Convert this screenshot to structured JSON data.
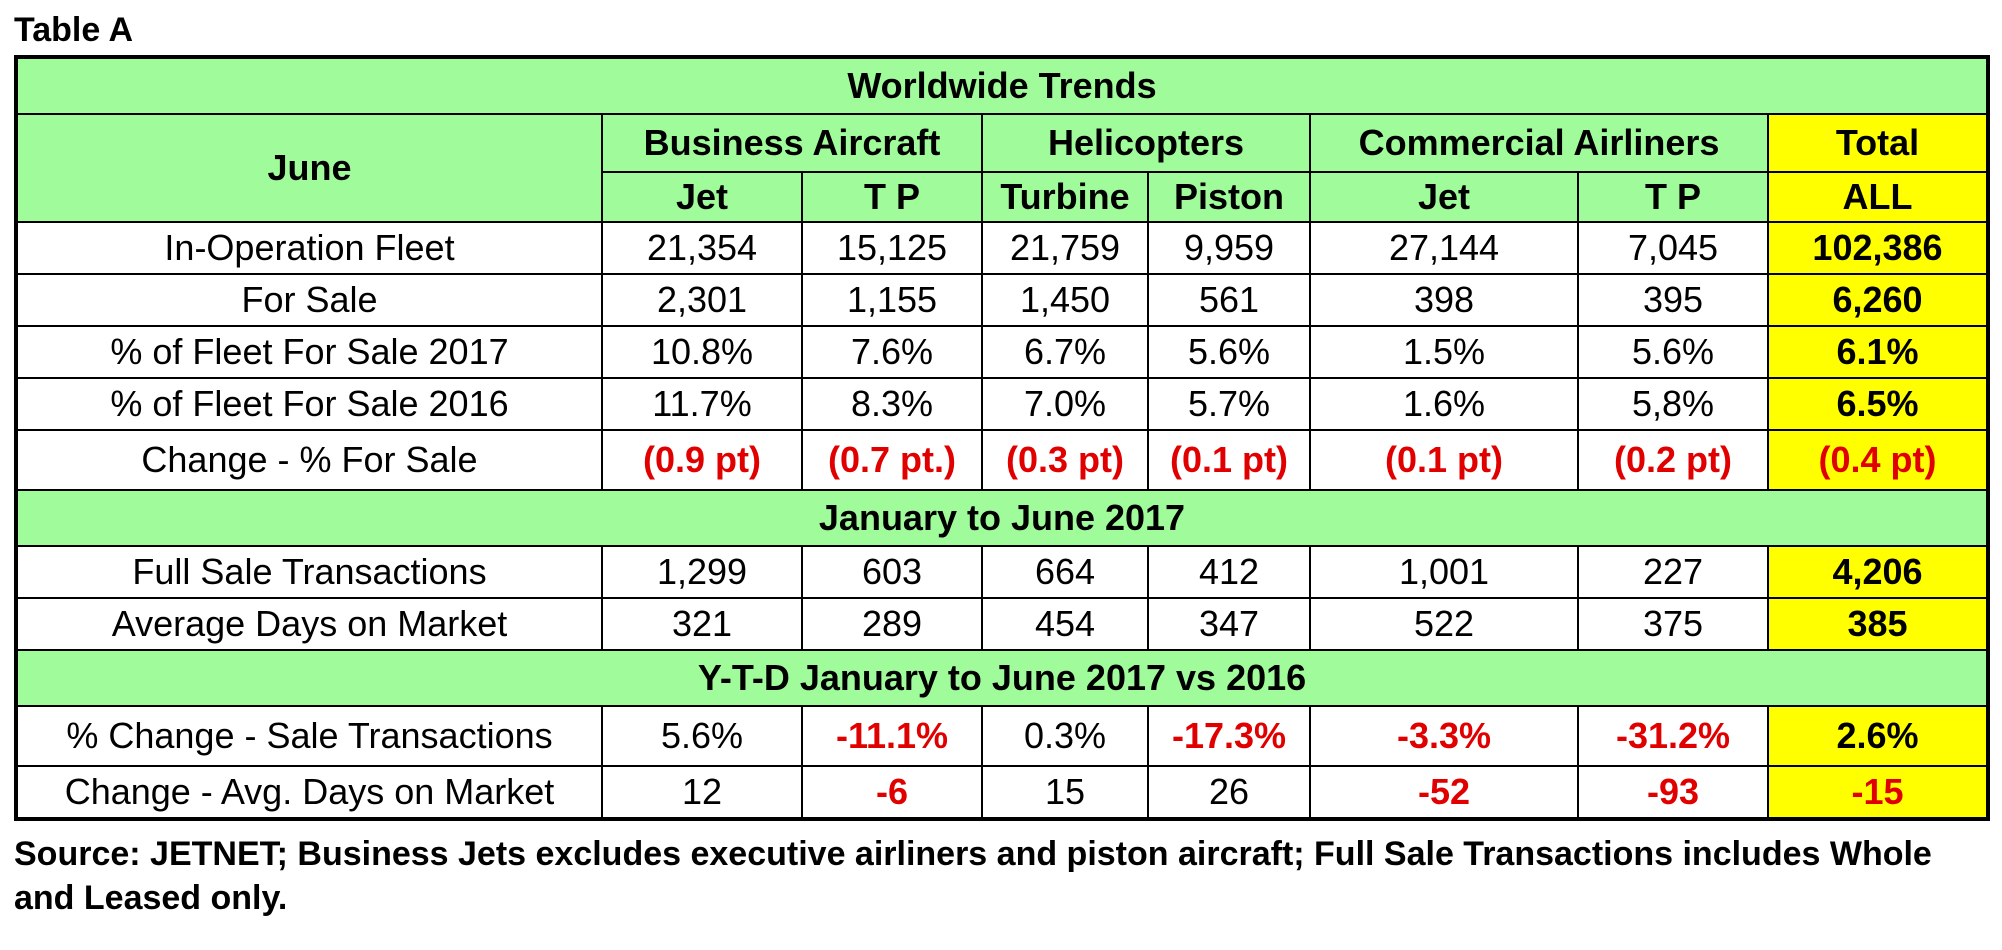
{
  "caption": "Table A",
  "title": "Worldwide Trends",
  "row_header": "June",
  "groups": {
    "business": "Business Aircraft",
    "helicopters": "Helicopters",
    "commercial": "Commercial Airliners",
    "total": "Total"
  },
  "columns": [
    "Jet",
    "T P",
    "Turbine",
    "Piston",
    "Jet",
    "T P",
    "ALL"
  ],
  "section1_rows": [
    {
      "label": "In-Operation Fleet",
      "values": [
        "21,354",
        "15,125",
        "21,759",
        "9,959",
        "27,144",
        "7,045",
        "102,386"
      ]
    },
    {
      "label": "For Sale",
      "values": [
        "2,301",
        "1,155",
        "1,450",
        "561",
        "398",
        "395",
        "6,260"
      ]
    },
    {
      "label": "% of Fleet For Sale 2017",
      "values": [
        "10.8%",
        "7.6%",
        "6.7%",
        "5.6%",
        "1.5%",
        "5.6%",
        "6.1%"
      ]
    },
    {
      "label": "% of Fleet For Sale 2016",
      "values": [
        "11.7%",
        "8.3%",
        "7.0%",
        "5.7%",
        "1.6%",
        "5,8%",
        "6.5%"
      ]
    },
    {
      "label": "Change - % For Sale",
      "values": [
        "(0.9 pt)",
        "(0.7 pt.)",
        "(0.3 pt)",
        "(0.1 pt)",
        "(0.1 pt)",
        "(0.2 pt)",
        "(0.4 pt)"
      ]
    }
  ],
  "section2_title": "January to June 2017",
  "section2_rows": [
    {
      "label": "Full Sale Transactions",
      "values": [
        "1,299",
        "603",
        "664",
        "412",
        "1,001",
        "227",
        "4,206"
      ]
    },
    {
      "label": "Average Days on Market",
      "values": [
        "321",
        "289",
        "454",
        "347",
        "522",
        "375",
        "385"
      ]
    }
  ],
  "section3_title": "Y-T-D January to June 2017 vs 2016",
  "section3_rows": [
    {
      "label": "% Change  - Sale Transactions",
      "values": [
        "5.6%",
        "-11.1%",
        "0.3%",
        "-17.3%",
        "-3.3%",
        "-31.2%",
        "2.6%"
      ]
    },
    {
      "label": "Change -  Avg. Days on Market",
      "values": [
        "12",
        "-6",
        "15",
        "26",
        "-52",
        "-93",
        "-15"
      ]
    }
  ],
  "footer": "Source: JETNET; Business Jets excludes executive airliners and piston aircraft; Full Sale Transactions includes Whole and Leased only."
}
